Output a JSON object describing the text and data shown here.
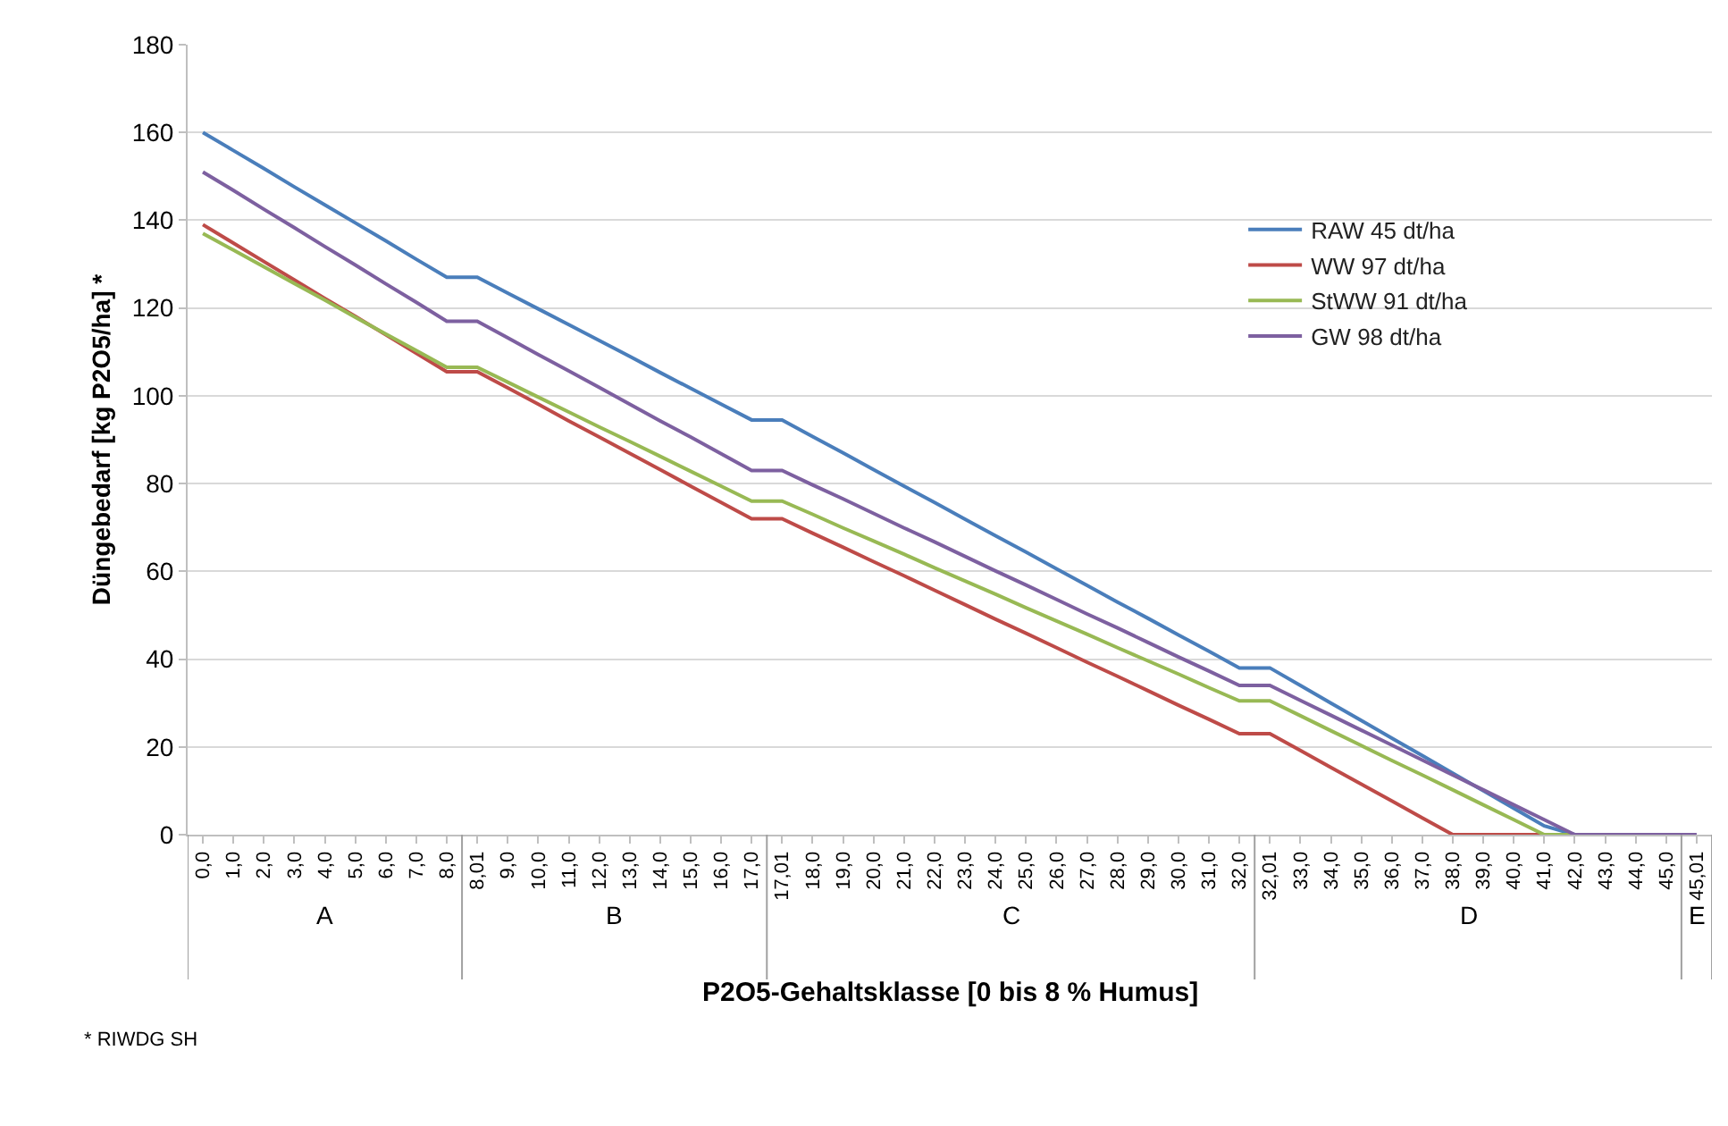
{
  "chart_data": {
    "type": "line",
    "xlabel": "P2O5-Gehaltsklasse [0 bis 8 % Humus]",
    "ylabel": "Düngebedarf [kg P2O5/ha] *",
    "categories": [
      "0,0",
      "1,0",
      "2,0",
      "3,0",
      "4,0",
      "5,0",
      "6,0",
      "7,0",
      "8,0",
      "8,01",
      "9,0",
      "10,0",
      "11,0",
      "12,0",
      "13,0",
      "14,0",
      "15,0",
      "16,0",
      "17,0",
      "17,01",
      "18,0",
      "19,0",
      "20,0",
      "21,0",
      "22,0",
      "23,0",
      "24,0",
      "25,0",
      "26,0",
      "27,0",
      "28,0",
      "29,0",
      "30,0",
      "31,0",
      "32,0",
      "32,01",
      "33,0",
      "34,0",
      "35,0",
      "36,0",
      "37,0",
      "38,0",
      "39,0",
      "40,0",
      "41,0",
      "42,0",
      "43,0",
      "44,0",
      "45,0",
      "45,01"
    ],
    "series": [
      {
        "name": "RAW 45 dt/ha",
        "color": "#4a7ebb",
        "values": [
          160,
          155.9,
          151.8,
          147.6,
          143.5,
          139.4,
          135.3,
          131.1,
          127,
          127,
          123.4,
          119.8,
          116.2,
          112.6,
          109,
          105.3,
          101.7,
          98.1,
          94.5,
          94.5,
          90.7,
          87,
          83.2,
          79.4,
          75.7,
          71.9,
          68.1,
          64.4,
          60.6,
          56.8,
          53,
          49.3,
          45.5,
          41.8,
          38,
          38,
          34,
          30,
          26,
          22,
          18,
          14,
          10,
          6,
          2,
          0,
          0,
          null,
          null,
          null
        ]
      },
      {
        "name": "WW 97 dt/ha",
        "color": "#be4b48",
        "values": [
          139,
          134.8,
          130.6,
          126.4,
          122.2,
          118.1,
          113.9,
          109.7,
          105.5,
          105.5,
          101.8,
          98.1,
          94.3,
          90.6,
          86.9,
          83.2,
          79.4,
          75.7,
          72,
          72,
          68.7,
          65.5,
          62.2,
          59,
          55.7,
          52.4,
          49.1,
          45.9,
          42.6,
          39.3,
          36.1,
          32.8,
          29.5,
          26.3,
          23,
          23,
          19.2,
          15.3,
          11.5,
          7.7,
          3.8,
          0,
          0,
          0,
          0,
          0,
          null,
          null,
          null,
          null
        ]
      },
      {
        "name": "StWW 91 dt/ha",
        "color": "#98b954",
        "values": [
          137,
          133.2,
          129.4,
          125.6,
          121.8,
          117.9,
          114.1,
          110.3,
          106.5,
          106.5,
          103.1,
          99.7,
          96.3,
          92.9,
          89.6,
          86.2,
          82.8,
          79.4,
          76,
          76,
          73,
          69.9,
          66.9,
          63.9,
          60.8,
          57.8,
          54.8,
          51.7,
          48.7,
          45.7,
          42.6,
          39.6,
          36.6,
          33.5,
          30.5,
          30.5,
          27.1,
          23.7,
          20.3,
          16.9,
          13.6,
          10.2,
          6.8,
          3.4,
          0,
          0,
          0,
          null,
          null,
          null
        ]
      },
      {
        "name": "GW 98 dt/ha",
        "color": "#7d60a0",
        "values": [
          151,
          146.8,
          142.5,
          138.3,
          134,
          129.8,
          125.5,
          121.3,
          117,
          117,
          113.2,
          109.4,
          105.7,
          101.9,
          98.1,
          94.3,
          90.6,
          86.8,
          83,
          83,
          79.7,
          76.5,
          73.2,
          69.9,
          66.7,
          63.4,
          60.1,
          56.9,
          53.6,
          50.3,
          47.1,
          43.8,
          40.5,
          37.3,
          34,
          34,
          30.6,
          27.2,
          23.8,
          20.4,
          17,
          13.6,
          10.2,
          6.8,
          3.4,
          0,
          0,
          0,
          0,
          0
        ]
      }
    ],
    "annotations": [
      "A",
      "B",
      "C",
      "D",
      "E",
      "* RIWDG SH"
    ],
    "ylim": [
      0,
      180
    ],
    "yticks": [
      0,
      20,
      40,
      60,
      80,
      100,
      120,
      140,
      160,
      180
    ],
    "grid": "y",
    "legend": "top right",
    "marker": "none",
    "line_style": "solid"
  }
}
